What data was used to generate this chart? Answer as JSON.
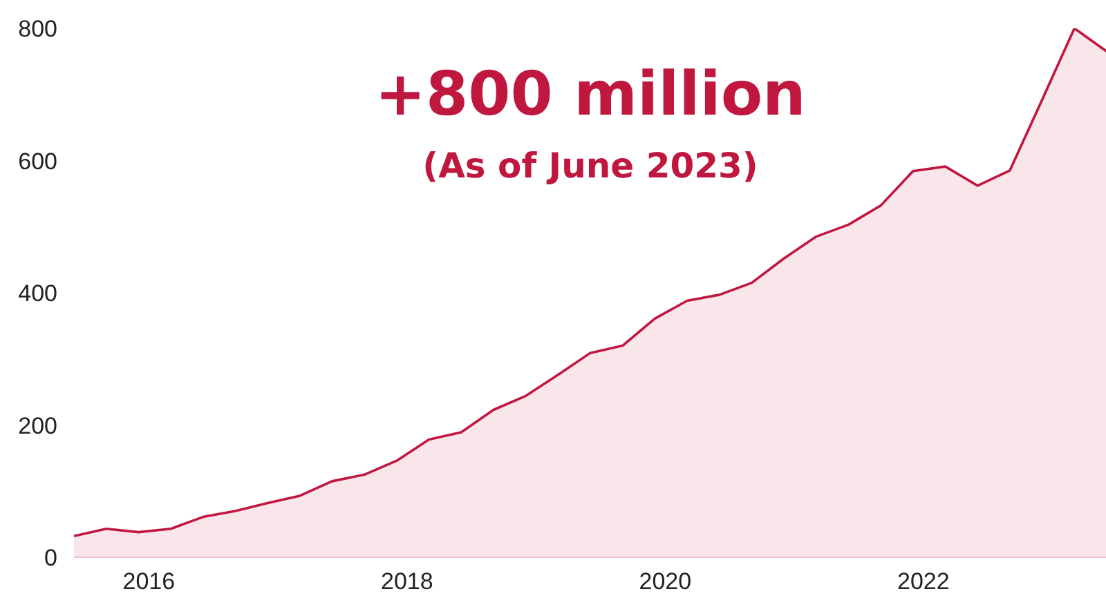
{
  "chart_data": {
    "type": "area",
    "title": "+800 million",
    "subtitle": "(As of June 2023)",
    "x": [
      2015.42,
      2015.67,
      2015.92,
      2016.17,
      2016.42,
      2016.67,
      2016.92,
      2017.17,
      2017.42,
      2017.67,
      2017.92,
      2018.17,
      2018.42,
      2018.67,
      2018.92,
      2019.17,
      2019.42,
      2019.67,
      2019.92,
      2020.17,
      2020.42,
      2020.67,
      2020.92,
      2021.17,
      2021.42,
      2021.67,
      2021.92,
      2022.17,
      2022.42,
      2022.67,
      2022.92,
      2023.17,
      2023.42
    ],
    "series": [
      {
        "color": "#c0173f",
        "values": [
          32,
          43,
          38,
          43,
          61,
          70,
          82,
          93,
          115,
          125,
          146,
          178,
          189,
          223,
          244,
          276,
          309,
          320,
          361,
          388,
          397,
          415,
          452,
          485,
          503,
          532,
          584,
          591,
          562,
          585,
          692,
          800,
          765
        ]
      }
    ],
    "xlim": [
      2015.42,
      2023.42
    ],
    "ylim": [
      0,
      800
    ],
    "xticks": [
      2016,
      2018,
      2020,
      2022
    ],
    "yticks": [
      0,
      200,
      400,
      600,
      800
    ],
    "grid": false
  }
}
